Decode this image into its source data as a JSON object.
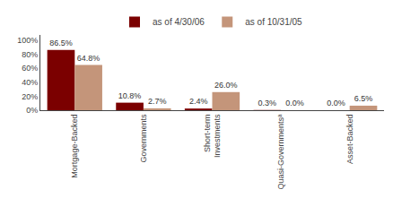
{
  "chart_data": {
    "type": "bar",
    "categories": [
      "Mortgage-Backed",
      "Governments",
      "Short-term\nInvestments",
      "Quasi-Governmentsᵃ",
      "Asset-Backed"
    ],
    "series": [
      {
        "name": "as of 4/30/06",
        "color": "#7B0000",
        "values": [
          86.5,
          10.8,
          2.4,
          0.3,
          0.0
        ],
        "value_labels": [
          "86.5%",
          "10.8%",
          "2.4%",
          "0.3%",
          "0.0%"
        ]
      },
      {
        "name": "as of 10/31/05",
        "color": "#C4957A",
        "values": [
          64.8,
          2.7,
          26.0,
          0.0,
          6.5
        ],
        "value_labels": [
          "64.8%",
          "2.7%",
          "26.0%",
          "0.0%",
          "6.5%"
        ]
      }
    ],
    "ylim": [
      0,
      108
    ],
    "yticks": [
      {
        "value": 0,
        "label": "0%"
      },
      {
        "value": 20,
        "label": "20%"
      },
      {
        "value": 40,
        "label": "40%"
      },
      {
        "value": 60,
        "label": "60%"
      },
      {
        "value": 80,
        "label": "80%"
      },
      {
        "value": 100,
        "label": "100%"
      }
    ],
    "grid": false,
    "legend": "top",
    "data_labels": true
  }
}
